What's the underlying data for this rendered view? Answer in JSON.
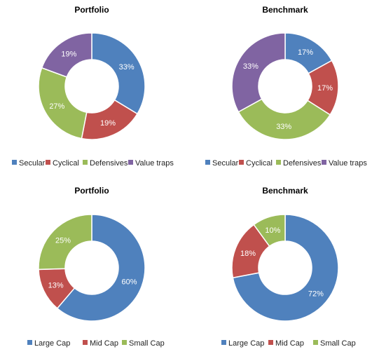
{
  "chart_data": [
    {
      "type": "pie",
      "title": "Portfolio",
      "categories": [
        "Secular",
        "Cyclical",
        "Defensives",
        "Value traps"
      ],
      "values": [
        33,
        19,
        27,
        19
      ],
      "labels": [
        "33%",
        "19%",
        "27%",
        "19%"
      ],
      "colors": [
        "#4f81bd",
        "#c0504d",
        "#9bbb59",
        "#8064a2"
      ],
      "legend_position": "bottom"
    },
    {
      "type": "pie",
      "title": "Benchmark",
      "categories": [
        "Secular",
        "Cyclical",
        "Defensives",
        "Value traps"
      ],
      "values": [
        17,
        17,
        33,
        33
      ],
      "labels": [
        "17%",
        "17%",
        "33%",
        "33%"
      ],
      "colors": [
        "#4f81bd",
        "#c0504d",
        "#9bbb59",
        "#8064a2"
      ],
      "legend_position": "bottom"
    },
    {
      "type": "pie",
      "title": "Portfolio",
      "categories": [
        "Large Cap",
        "Mid Cap",
        "Small Cap"
      ],
      "values": [
        60,
        13,
        25
      ],
      "labels": [
        "60%",
        "13%",
        "25%"
      ],
      "colors": [
        "#4f81bd",
        "#c0504d",
        "#9bbb59"
      ],
      "legend_position": "bottom"
    },
    {
      "type": "pie",
      "title": "Benchmark",
      "categories": [
        "Large Cap",
        "Mid Cap",
        "Small Cap"
      ],
      "values": [
        72,
        18,
        10
      ],
      "labels": [
        "72%",
        "18%",
        "10%"
      ],
      "colors": [
        "#4f81bd",
        "#c0504d",
        "#9bbb59"
      ],
      "legend_position": "bottom"
    }
  ]
}
